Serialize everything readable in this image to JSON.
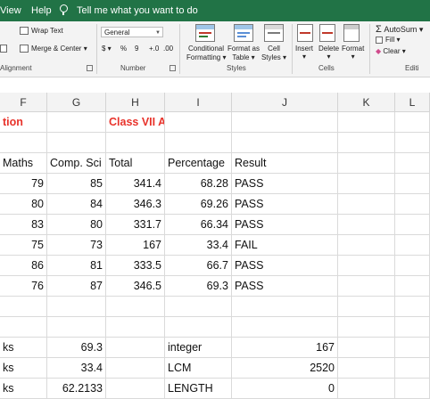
{
  "menu": {
    "view": "View",
    "help": "Help",
    "tellme": "Tell me what you want to do"
  },
  "ribbon": {
    "wrap_text": "Wrap Text",
    "merge_center": "Merge & Center",
    "alignment_label": "Alignment",
    "number_format": "General",
    "currency_symbol": "$",
    "percent_symbol": "%",
    "comma_symbol": "9",
    "inc_decimal": "+.0",
    "dec_decimal": ".00",
    "number_label": "Number",
    "conditional_formatting_1": "Conditional",
    "conditional_formatting_2": "Formatting",
    "format_as_table_1": "Format as",
    "format_as_table_2": "Table",
    "cell_styles_1": "Cell",
    "cell_styles_2": "Styles",
    "styles_label": "Styles",
    "insert": "Insert",
    "delete": "Delete",
    "format": "Format",
    "cells_label": "Cells",
    "autosum": "AutoSum",
    "fill": "Fill",
    "clear": "Clear",
    "editing_label": "Editi"
  },
  "columns": [
    "F",
    "G",
    "H",
    "I",
    "J",
    "K",
    "L"
  ],
  "rows": [
    {
      "F": "tion",
      "G": "",
      "H": "Class VII A",
      "I": "",
      "J": "",
      "F_red": true,
      "H_red": true
    },
    {
      "F": "",
      "G": "",
      "H": "",
      "I": "",
      "J": ""
    },
    {
      "F": "Maths",
      "G": "Comp. Sci",
      "H": "Total",
      "I": "Percentage",
      "J": "Result"
    },
    {
      "F": "79",
      "G": "85",
      "H": "341.4",
      "I": "68.28",
      "J": "PASS"
    },
    {
      "F": "80",
      "G": "84",
      "H": "346.3",
      "I": "69.26",
      "J": "PASS"
    },
    {
      "F": "83",
      "G": "80",
      "H": "331.7",
      "I": "66.34",
      "J": "PASS"
    },
    {
      "F": "75",
      "G": "73",
      "H": "167",
      "I": "33.4",
      "J": "FAIL"
    },
    {
      "F": "86",
      "G": "81",
      "H": "333.5",
      "I": "66.7",
      "J": "PASS"
    },
    {
      "F": "76",
      "G": "87",
      "H": "346.5",
      "I": "69.3",
      "J": "PASS"
    },
    {
      "F": "",
      "G": "",
      "H": "",
      "I": "",
      "J": ""
    },
    {
      "F": "",
      "G": "",
      "H": "",
      "I": "",
      "J": ""
    },
    {
      "F": "ks",
      "G": "69.3",
      "H": "",
      "I": "integer",
      "J": "167"
    },
    {
      "F": "ks",
      "G": "33.4",
      "H": "",
      "I": "LCM",
      "J": "2520"
    },
    {
      "F": "ks",
      "G": "62.2133",
      "H": "",
      "I": "LENGTH",
      "J": "0"
    }
  ]
}
